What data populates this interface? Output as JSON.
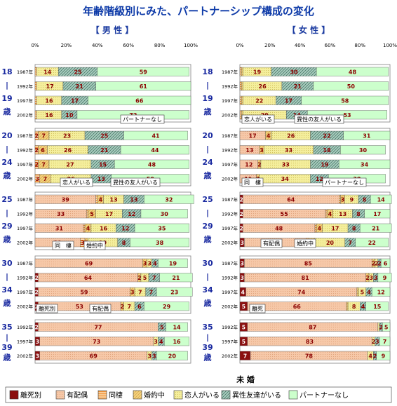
{
  "title": "年齢階級別にみた、パートナーシップ構成の変化",
  "headers": {
    "male": "【 男 性 】",
    "female": "【 女 性 】"
  },
  "note": "未 婚",
  "colors": {
    "rikon": "#8b0f0f",
    "haigusha": "#f6c8a8",
    "dousei": "#f08a2a",
    "konyaku": "#f4d07c",
    "koibito": "#f4ee9c",
    "yuujin": "#a8ccbe",
    "nashi": "#ccffcc"
  },
  "chart_data": {
    "type": "bar",
    "orientation": "horizontal-stacked-100",
    "xlim": [
      0,
      100
    ],
    "xticks": [
      "0%",
      "20%",
      "40%",
      "60%",
      "80%",
      "100%"
    ],
    "legend": [
      {
        "key": "rikon",
        "label": "離死別"
      },
      {
        "key": "haigusha",
        "label": "有配偶"
      },
      {
        "key": "dousei",
        "label": "同棲"
      },
      {
        "key": "konyaku",
        "label": "婚約中"
      },
      {
        "key": "koibito",
        "label": "恋人がいる"
      },
      {
        "key": "yuujin",
        "label": "異性友達がいる"
      },
      {
        "key": "nashi",
        "label": "パートナーなし"
      }
    ],
    "panels": [
      {
        "side": "male",
        "groups": [
          {
            "age": [
              "18",
              "|",
              "19",
              "歳"
            ],
            "rows": [
              {
                "year": "1987年",
                "values": [
                  0,
                  0,
                  1,
                  0,
                  14,
                  25,
                  59
                ]
              },
              {
                "year": "1992年",
                "values": [
                  0,
                  0,
                  1,
                  0,
                  17,
                  21,
                  61
                ]
              },
              {
                "year": "1997年",
                "values": [
                  0,
                  0,
                  1,
                  0,
                  16,
                  17,
                  66
                ]
              },
              {
                "year": "2002年",
                "values": [
                  0,
                  0,
                  1,
                  0,
                  16,
                  10,
                  72
                ]
              }
            ]
          },
          {
            "age": [
              "20",
              "|",
              "24",
              "歳"
            ],
            "rows": [
              {
                "year": "1987年",
                "values": [
                  0,
                  0,
                  2,
                  7,
                  23,
                  25,
                  41
                ]
              },
              {
                "year": "1992年",
                "values": [
                  0,
                  0,
                  2,
                  6,
                  26,
                  21,
                  44
                ]
              },
              {
                "year": "1997年",
                "values": [
                  0,
                  0,
                  2,
                  7,
                  27,
                  15,
                  48
                ]
              },
              {
                "year": "2002年",
                "values": [
                  0,
                  0,
                  3,
                  7,
                  26,
                  13,
                  50
                ]
              }
            ]
          },
          {
            "age": [
              "25",
              "|",
              "29",
              "歳"
            ],
            "rows": [
              {
                "year": "1987年",
                "values": [
                  0,
                  39,
                  1,
                  4,
                  13,
                  13,
                  32
                ]
              },
              {
                "year": "1992年",
                "values": [
                  0,
                  33,
                  1,
                  5,
                  17,
                  12,
                  30
                ]
              },
              {
                "year": "1997年",
                "values": [
                  0,
                  31,
                  1,
                  4,
                  16,
                  12,
                  35
                ]
              },
              {
                "year": "2002年",
                "values": [
                  0,
                  29,
                  3,
                  2,
                  19,
                  8,
                  38
                ]
              }
            ]
          },
          {
            "age": [
              "30",
              "|",
              "34",
              "歳"
            ],
            "rows": [
              {
                "year": "1987年",
                "values": [
                  0,
                  69,
                  0,
                  3,
                  3,
                  4,
                  19
                ]
              },
              {
                "year": "1992年",
                "values": [
                  2,
                  64,
                  0,
                  2,
                  5,
                  7,
                  21
                ]
              },
              {
                "year": "1997年",
                "values": [
                  2,
                  59,
                  0,
                  3,
                  7,
                  7,
                  23
                ]
              },
              {
                "year": "2002年",
                "values": [
                  2,
                  53,
                  0,
                  2,
                  7,
                  6,
                  29
                ]
              }
            ]
          },
          {
            "age": [
              "35",
              "|",
              "39",
              "歳"
            ],
            "rows": [
              {
                "year": "1992年",
                "values": [
                  2,
                  77,
                  0,
                  0,
                  0,
                  5,
                  14
                ]
              },
              {
                "year": "1997年",
                "values": [
                  3,
                  73,
                  0,
                  0,
                  3,
                  4,
                  16
                ]
              },
              {
                "year": "2002年",
                "values": [
                  3,
                  69,
                  0,
                  0,
                  3,
                  3,
                  20
                ]
              }
            ]
          }
        ]
      },
      {
        "side": "female",
        "groups": [
          {
            "age": [
              "18",
              "|",
              "19",
              "歳"
            ],
            "rows": [
              {
                "year": "1987年",
                "values": [
                  0,
                  0,
                  1,
                  1,
                  19,
                  30,
                  48
                ]
              },
              {
                "year": "1992年",
                "values": [
                  0,
                  0,
                  1,
                  1,
                  26,
                  21,
                  50
                ]
              },
              {
                "year": "1997年",
                "values": [
                  0,
                  0,
                  1,
                  1,
                  22,
                  17,
                  58
                ]
              },
              {
                "year": "2002年",
                "values": [
                  0,
                  0,
                  1,
                  1,
                  29,
                  14,
                  53
                ]
              }
            ]
          },
          {
            "age": [
              "20",
              "|",
              "24",
              "歳"
            ],
            "rows": [
              {
                "year": "1987年",
                "values": [
                  0,
                  17,
                  0,
                  4,
                  26,
                  22,
                  31
                ]
              },
              {
                "year": "1992年",
                "values": [
                  0,
                  13,
                  0,
                  3,
                  33,
                  18,
                  30
                ]
              },
              {
                "year": "1997年",
                "values": [
                  0,
                  12,
                  0,
                  2,
                  33,
                  19,
                  34
                ]
              },
              {
                "year": "2002年",
                "values": [
                  0,
                  11,
                  0,
                  2,
                  34,
                  12,
                  38
                ]
              }
            ]
          },
          {
            "age": [
              "25",
              "|",
              "29",
              "歳"
            ],
            "rows": [
              {
                "year": "1987年",
                "values": [
                  2,
                  64,
                  1,
                  3,
                  9,
                  8,
                  14
                ]
              },
              {
                "year": "1992年",
                "values": [
                  2,
                  55,
                  1,
                  4,
                  13,
                  8,
                  17
                ]
              },
              {
                "year": "1997年",
                "values": [
                  2,
                  48,
                  1,
                  4,
                  17,
                  8,
                  21
                ]
              },
              {
                "year": "2002年",
                "values": [
                  3,
                  41,
                  2,
                  4,
                  20,
                  7,
                  22
                ]
              }
            ]
          },
          {
            "age": [
              "30",
              "|",
              "34",
              "歳"
            ],
            "rows": [
              {
                "year": "1987年",
                "values": [
                  3,
                  85,
                  0,
                  2,
                  2,
                  2,
                  6
                ]
              },
              {
                "year": "1992年",
                "values": [
                  3,
                  81,
                  0,
                  2,
                  3,
                  3,
                  9
                ]
              },
              {
                "year": "1997年",
                "values": [
                  4,
                  74,
                  0,
                  1,
                  5,
                  4,
                  12
                ]
              },
              {
                "year": "2002年",
                "values": [
                  5,
                  66,
                  0,
                  1,
                  8,
                  4,
                  15
                ]
              }
            ]
          },
          {
            "age": [
              "35",
              "|",
              "39",
              "歳"
            ],
            "rows": [
              {
                "year": "1992年",
                "values": [
                  5,
                  87,
                  0,
                  0,
                  1,
                  2,
                  5
                ]
              },
              {
                "year": "1997年",
                "values": [
                  5,
                  83,
                  0,
                  0,
                  2,
                  3,
                  7
                ]
              },
              {
                "year": "2002年",
                "values": [
                  7,
                  78,
                  0,
                  0,
                  4,
                  2,
                  9
                ]
              }
            ]
          }
        ]
      }
    ],
    "annotations": [
      {
        "panel": "male",
        "group": 0,
        "text": "パートナーなし"
      },
      {
        "panel": "male",
        "group": 2,
        "text": "恋人がいる"
      },
      {
        "panel": "male",
        "group": 2,
        "text": "異性の友人がいる"
      },
      {
        "panel": "male",
        "group": 3,
        "text": "同　棲"
      },
      {
        "panel": "male",
        "group": 3,
        "text": "婚約中"
      },
      {
        "panel": "male",
        "group": 4,
        "text": "離死別"
      },
      {
        "panel": "male",
        "group": 4,
        "text": "有配偶"
      },
      {
        "panel": "female",
        "group": 1,
        "text": "恋人がいる"
      },
      {
        "panel": "female",
        "group": 1,
        "text": "異性の友人がいる"
      },
      {
        "panel": "female",
        "group": 2,
        "text": "同　棲"
      },
      {
        "panel": "female",
        "group": 2,
        "text": "パートナーなし"
      },
      {
        "panel": "female",
        "group": 3,
        "text": "有配偶"
      },
      {
        "panel": "female",
        "group": 3,
        "text": "婚約中"
      },
      {
        "panel": "female",
        "group": 4,
        "text": "離死"
      }
    ]
  }
}
